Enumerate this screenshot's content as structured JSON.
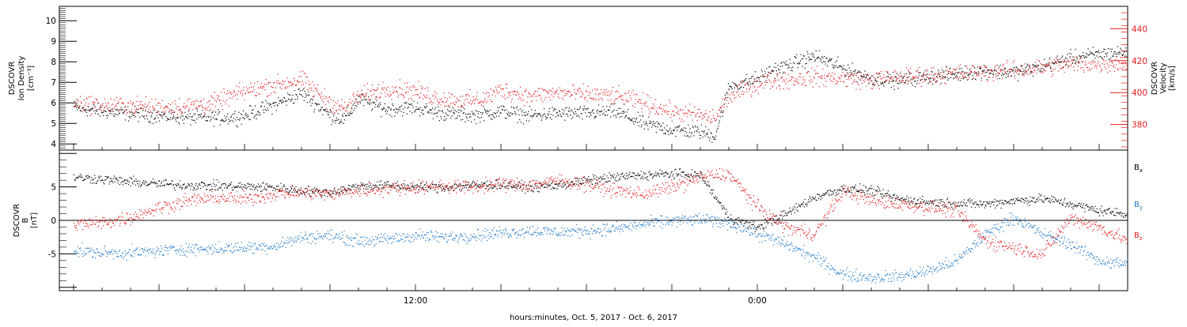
{
  "chart_data": [
    {
      "type": "scatter",
      "panel": "plasma",
      "ylabel_left": [
        "DSCOVR",
        "Ion Density",
        "[cm⁻³]"
      ],
      "ylabel_right": [
        "DSCOVR",
        "Velocity",
        "[km/s]"
      ],
      "ylim_left": [
        3.7,
        10.7
      ],
      "ylim_right": [
        364,
        454
      ],
      "yticks_left": [
        "4",
        "5",
        "6",
        "7",
        "8",
        "9",
        "10"
      ],
      "yticks_left_values": [
        4,
        5,
        6,
        7,
        8,
        9,
        10
      ],
      "yticks_right": [
        "380",
        "400",
        "420",
        "440"
      ],
      "yticks_right_values": [
        380,
        400,
        420,
        440
      ],
      "xlim": [
        -0.5,
        37
      ],
      "series": [
        {
          "axis": "left",
          "color": "#000000",
          "x": [
            0,
            1,
            2,
            3,
            4,
            5,
            5.5,
            6,
            7,
            8,
            9,
            9.5,
            10,
            11,
            12,
            12.5,
            13,
            14,
            14.5,
            15,
            16,
            17,
            18,
            19,
            20,
            21,
            22,
            22.5,
            23,
            24,
            24.5,
            25,
            26,
            27,
            28,
            29,
            30,
            31,
            32,
            33,
            34,
            35,
            36,
            37
          ],
          "y": [
            5.8,
            5.6,
            5.5,
            5.4,
            5.3,
            5.3,
            5.3,
            5.4,
            5.9,
            6.5,
            5.4,
            5.2,
            6.2,
            5.7,
            5.8,
            5.6,
            5.5,
            5.4,
            5.5,
            5.6,
            5.4,
            5.5,
            5.5,
            5.6,
            5.0,
            4.7,
            4.6,
            4.4,
            6.8,
            7.2,
            7.6,
            7.8,
            8.3,
            7.7,
            7.2,
            7.1,
            7.3,
            7.4,
            7.6,
            7.5,
            7.8,
            8.2,
            8.4,
            8.5
          ]
        },
        {
          "axis": "right",
          "color": "#e41a1c",
          "x": [
            0,
            1,
            2,
            3,
            4,
            5,
            5.5,
            6,
            7,
            8,
            9,
            9.5,
            10,
            11,
            12,
            12.5,
            13,
            14,
            14.5,
            15,
            16,
            17,
            18,
            19,
            20,
            21,
            22,
            22.5,
            23,
            24,
            24.5,
            25,
            26,
            27,
            28,
            29,
            30,
            31,
            32,
            33,
            34,
            35,
            36,
            37
          ],
          "y": [
            394,
            392,
            392,
            391,
            392,
            394,
            398,
            401,
            405,
            408,
            394,
            390,
            398,
            403,
            401,
            398,
            396,
            395,
            397,
            402,
            398,
            400,
            399,
            398,
            394,
            388,
            386,
            384,
            398,
            406,
            408,
            408,
            410,
            409,
            408,
            410,
            411,
            412,
            413,
            414,
            416,
            418,
            418,
            419
          ]
        }
      ]
    },
    {
      "type": "scatter",
      "panel": "magnetic",
      "ylabel_left": [
        "DSCOVR",
        "B",
        "[nT]"
      ],
      "ylim": [
        -10.5,
        10.5
      ],
      "yticks": [
        "-5",
        "0",
        "5"
      ],
      "yticks_values": [
        -5,
        0,
        5
      ],
      "xlim": [
        -0.5,
        37
      ],
      "zero_line": true,
      "series": [
        {
          "name": "Bₓ",
          "color": "#000000",
          "x": [
            0,
            1,
            2,
            3,
            4,
            5,
            6,
            7,
            8,
            9,
            10,
            11,
            12,
            13,
            14,
            15,
            16,
            17,
            18,
            19,
            20,
            21,
            22,
            23,
            24,
            25,
            26,
            27,
            28,
            29,
            30,
            31,
            32,
            33,
            34,
            35,
            36,
            37
          ],
          "y": [
            6.5,
            6.2,
            5.8,
            5.5,
            5.3,
            5.2,
            5.1,
            5.0,
            4.5,
            4.2,
            5.2,
            5.3,
            5.0,
            5.0,
            5.3,
            5.4,
            5.0,
            5.3,
            6.0,
            6.5,
            6.8,
            7.0,
            6.8,
            0.5,
            -1.0,
            1.0,
            3.5,
            4.8,
            4.5,
            3.2,
            2.8,
            2.6,
            2.5,
            3.0,
            3.3,
            2.5,
            1.5,
            1.0
          ]
        },
        {
          "name": "Bᵧ",
          "color": "#1f78c8",
          "x": [
            0,
            1,
            2,
            3,
            4,
            5,
            6,
            7,
            8,
            9,
            10,
            11,
            12,
            13,
            14,
            15,
            16,
            17,
            18,
            19,
            20,
            21,
            22,
            23,
            24,
            25,
            26,
            27,
            28,
            29,
            30,
            31,
            32,
            33,
            34,
            35,
            36,
            37
          ],
          "y": [
            -4.5,
            -4.8,
            -4.8,
            -4.5,
            -4.2,
            -4.2,
            -4.0,
            -3.8,
            -2.5,
            -2.2,
            -3.0,
            -2.8,
            -2.2,
            -2.5,
            -2.2,
            -1.8,
            -1.5,
            -1.7,
            -1.5,
            -1.2,
            -0.5,
            0.0,
            0.2,
            -0.3,
            -2.0,
            -3.5,
            -5.5,
            -8.0,
            -8.5,
            -8.3,
            -7.5,
            -6.0,
            -2.0,
            0.5,
            -2.0,
            -3.5,
            -6.0,
            -6.5
          ]
        },
        {
          "name": "B_z",
          "color": "#e41a1c",
          "x": [
            0,
            1,
            2,
            3,
            4,
            5,
            6,
            7,
            8,
            9,
            10,
            11,
            12,
            13,
            14,
            15,
            16,
            17,
            18,
            19,
            20,
            21,
            22,
            23,
            24,
            25,
            26,
            27,
            28,
            29,
            30,
            31,
            32,
            33,
            34,
            35,
            36,
            37
          ],
          "y": [
            -0.5,
            -0.3,
            0.5,
            2.0,
            3.0,
            3.5,
            3.2,
            4.0,
            4.2,
            4.0,
            4.5,
            4.8,
            5.0,
            5.2,
            5.0,
            5.5,
            5.3,
            6.0,
            5.5,
            4.5,
            4.0,
            5.0,
            6.5,
            7.0,
            2.0,
            -1.0,
            -2.0,
            4.5,
            3.0,
            2.5,
            2.0,
            1.5,
            -3.0,
            -4.0,
            -5.0,
            0.5,
            -1.0,
            -3.0
          ]
        }
      ],
      "legend": [
        {
          "label": "B",
          "sub": "x",
          "color": "#000000"
        },
        {
          "label": "B",
          "sub": "y",
          "color": "#1f78c8"
        },
        {
          "label": "B",
          "sub": "z",
          "color": "#e41a1c"
        }
      ]
    }
  ],
  "xaxis": {
    "tick_labels": [
      "12:00",
      "0:00"
    ],
    "tick_label_hours": [
      12,
      24
    ],
    "xlabel": "hours:minutes,  Oct.  5, 2017 - Oct.  6, 2017"
  }
}
